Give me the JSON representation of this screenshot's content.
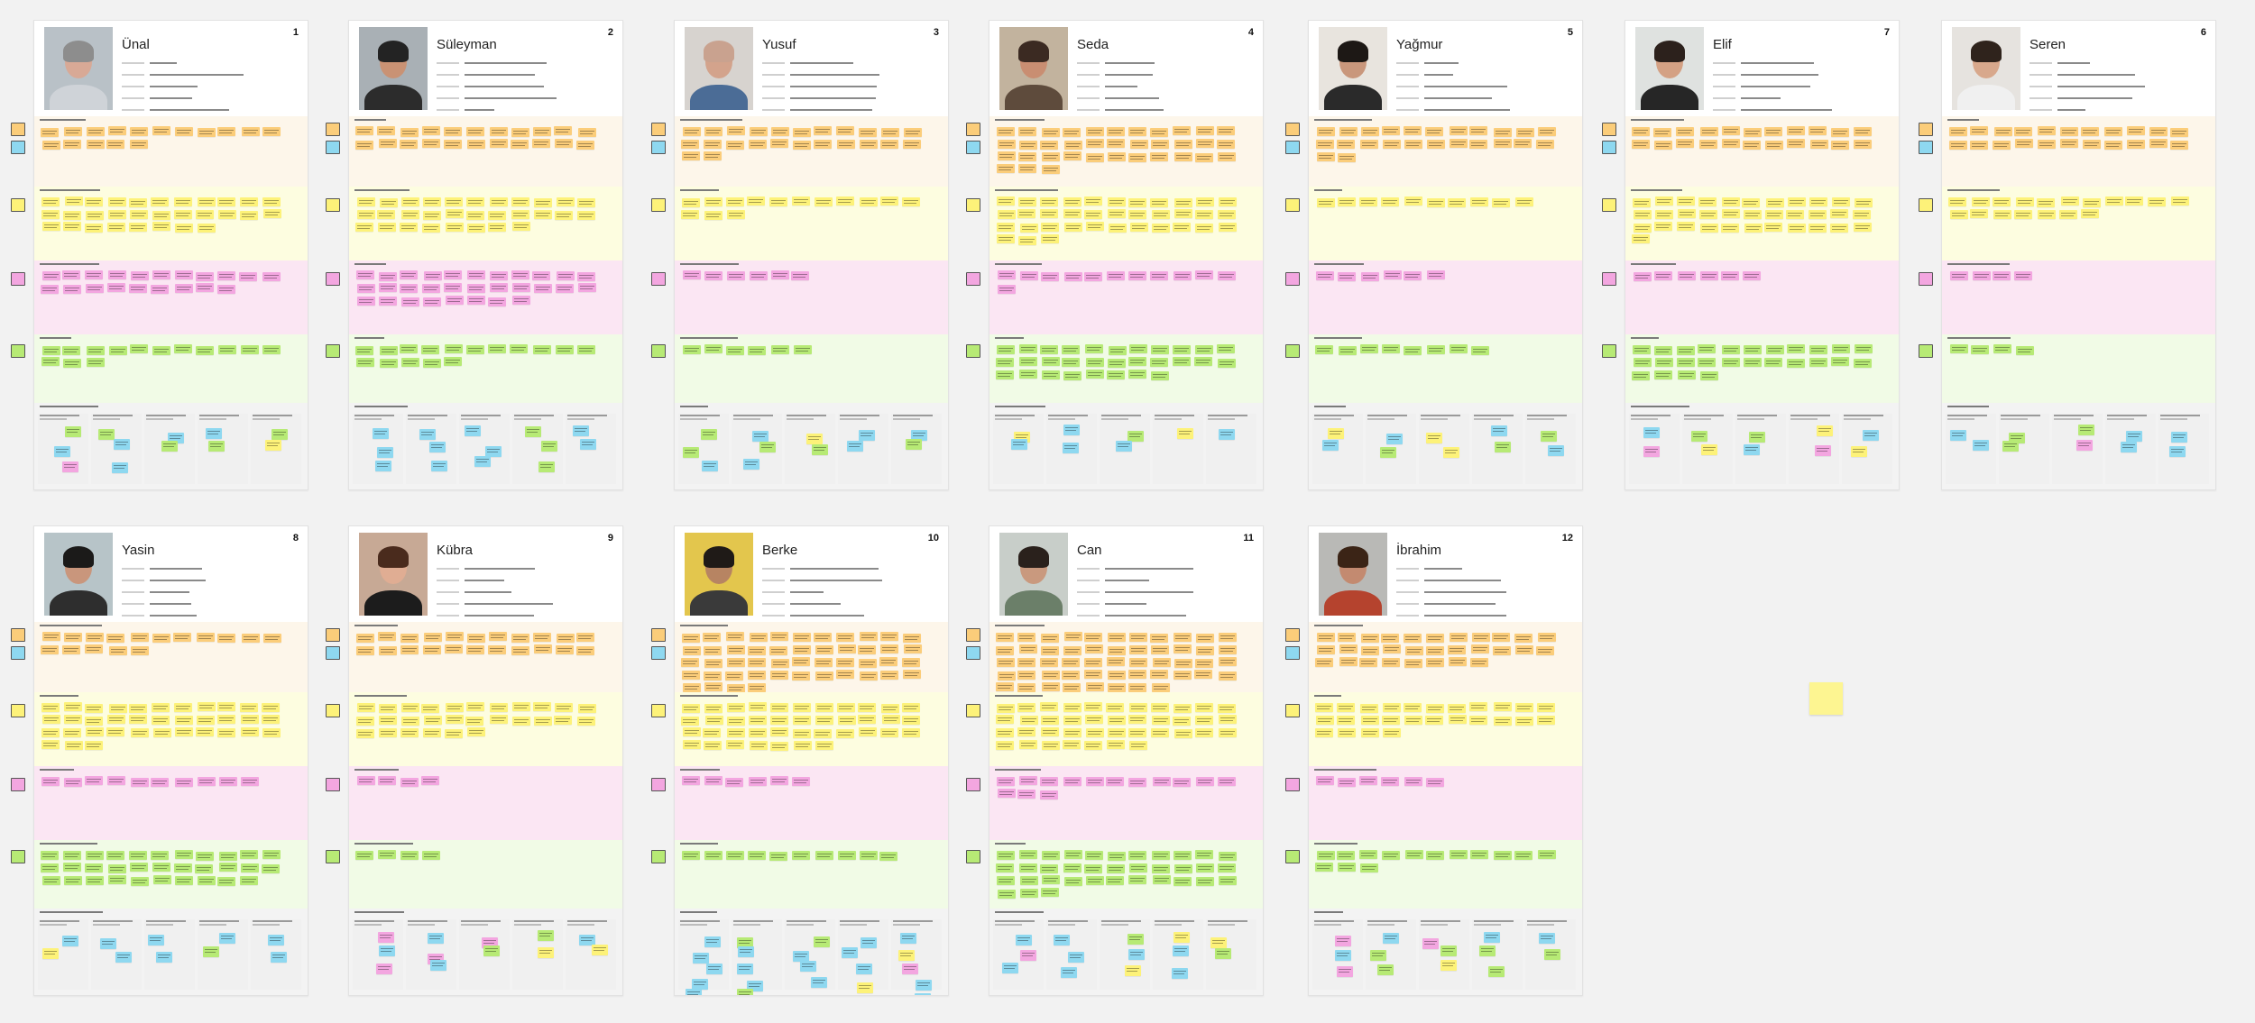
{
  "app": {
    "background": "#f2f2f2"
  },
  "colors": {
    "orange_section": "#fdf6ea",
    "yellow_section": "#fdfde0",
    "pink_section": "#fbe6f3",
    "green_section": "#f1fbe6",
    "grey_section": "#f3f3f3",
    "orange_note": "#fbcd7a",
    "yellow_note": "#fdf279",
    "pink_note": "#f3a6e0",
    "green_note": "#b7ea75",
    "blue_note": "#8ed8f0",
    "stray_note": "#fdf591"
  },
  "boards": [
    {
      "number": "1",
      "name": "Ünal",
      "avatar_palette": [
        "#b9c1c7",
        "#d8a996",
        "#8d8d8d",
        "#cfd3d8"
      ]
    },
    {
      "number": "2",
      "name": "Süleyman",
      "avatar_palette": [
        "#a9b0b5",
        "#c99274",
        "#232323",
        "#2c2c2c"
      ]
    },
    {
      "number": "3",
      "name": "Yusuf",
      "avatar_palette": [
        "#d7d3cf",
        "#d3a38c",
        "#c9a28f",
        "#4b6c96"
      ]
    },
    {
      "number": "4",
      "name": "Seda",
      "avatar_palette": [
        "#c2b39e",
        "#c98e72",
        "#3b2a22",
        "#5e4b3c"
      ]
    },
    {
      "number": "5",
      "name": "Yağmur",
      "avatar_palette": [
        "#e8e4de",
        "#c9977c",
        "#1d1815",
        "#2a2a2a"
      ]
    },
    {
      "number": "7",
      "name": "Elif",
      "avatar_palette": [
        "#dfe2e0",
        "#d4a184",
        "#2c211c",
        "#262626"
      ]
    },
    {
      "number": "6",
      "name": "Seren",
      "avatar_palette": [
        "#e6e3df",
        "#d8a88c",
        "#2f231c",
        "#f0f0f0"
      ]
    },
    {
      "number": "8",
      "name": "Yasin",
      "avatar_palette": [
        "#b7c4c8",
        "#c9967c",
        "#1b1a19",
        "#2e2e2e"
      ]
    },
    {
      "number": "9",
      "name": "Kübra",
      "avatar_palette": [
        "#c7a995",
        "#e0ad93",
        "#4a2b1d",
        "#1c1c1c"
      ]
    },
    {
      "number": "10",
      "name": "Berke",
      "avatar_palette": [
        "#e3c64d",
        "#b78462",
        "#1f1a17",
        "#3a3a3a"
      ]
    },
    {
      "number": "11",
      "name": "Can",
      "avatar_palette": [
        "#c8cec9",
        "#c9997e",
        "#2a211c",
        "#6b7f69"
      ]
    },
    {
      "number": "12",
      "name": "İbrahim",
      "avatar_palette": [
        "#b9b9b6",
        "#c38a70",
        "#3b2416",
        "#b5432e"
      ]
    }
  ]
}
